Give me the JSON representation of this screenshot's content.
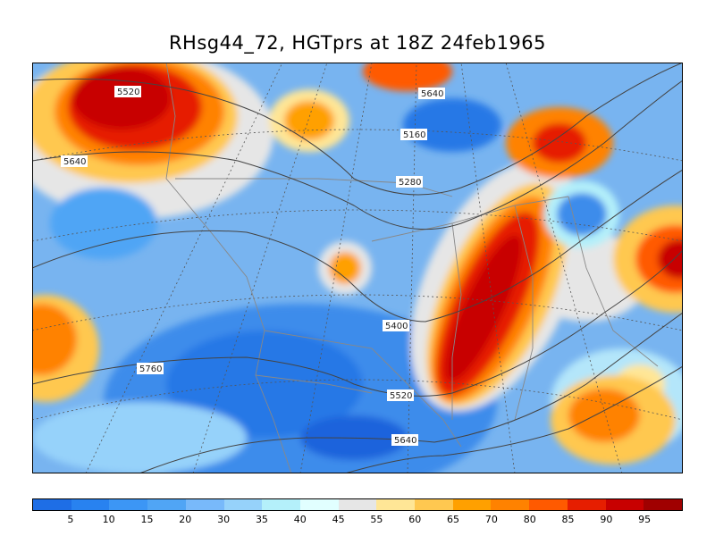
{
  "title": "RHsg44_72, HGTprs at 18Z  24feb1965",
  "map": {
    "shaded_field": "RHsg44_72",
    "contour_field": "HGTprs",
    "contour_labels": [
      "5520",
      "5640",
      "5160",
      "5640",
      "5280",
      "5400",
      "5760",
      "5520",
      "5640"
    ]
  },
  "legend": {
    "colors": [
      "#1e6ee6",
      "#2882f0",
      "#3c96f5",
      "#50a5f5",
      "#78b9fa",
      "#96d2fa",
      "#b4f0fa",
      "#e1ffff",
      "#e6e6e6",
      "#ffe696",
      "#ffc850",
      "#ffa000",
      "#ff8200",
      "#ff5a00",
      "#e61e00",
      "#c80000",
      "#a00000"
    ],
    "labels": [
      "5",
      "10",
      "15",
      "20",
      "30",
      "35",
      "40",
      "45",
      "55",
      "60",
      "65",
      "70",
      "80",
      "85",
      "90",
      "95"
    ]
  }
}
